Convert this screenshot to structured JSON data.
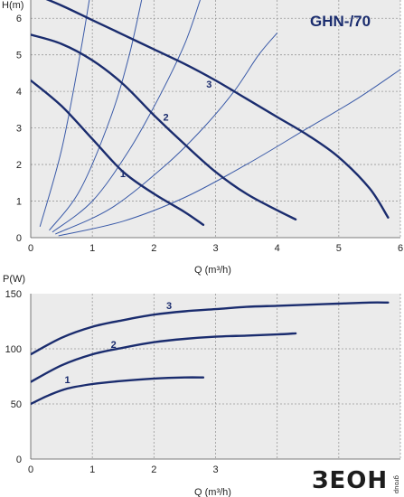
{
  "brand": {
    "logo_text": "ЗЕОН",
    "logo_sub": "group"
  },
  "chart_data": [
    {
      "type": "line",
      "title": "GHN-/70",
      "xlabel": "Q (m³/h)",
      "ylabel": "H(m)",
      "xlim": [
        0,
        6
      ],
      "ylim": [
        0,
        6.5
      ],
      "x_ticks": [
        "0",
        "1",
        "2",
        "3",
        "4",
        "5",
        "6"
      ],
      "y_ticks": [
        "0",
        "1",
        "2",
        "3",
        "4",
        "5",
        "6"
      ],
      "grid": true,
      "series": [
        {
          "name": "1",
          "x": [
            0,
            0.5,
            1.0,
            1.5,
            2.0,
            2.5,
            2.8
          ],
          "y": [
            4.3,
            3.6,
            2.7,
            1.8,
            1.2,
            0.7,
            0.35
          ]
        },
        {
          "name": "2",
          "x": [
            0,
            0.5,
            1.0,
            1.5,
            2.0,
            2.5,
            3.0,
            3.5,
            4.0,
            4.3
          ],
          "y": [
            5.55,
            5.3,
            4.85,
            4.2,
            3.35,
            2.55,
            1.8,
            1.2,
            0.75,
            0.5
          ]
        },
        {
          "name": "3",
          "x": [
            0,
            0.5,
            1.0,
            1.5,
            2.0,
            2.5,
            3.0,
            3.5,
            4.0,
            4.5,
            5.0,
            5.5,
            5.8
          ],
          "y": [
            6.7,
            6.35,
            5.95,
            5.55,
            5.15,
            4.75,
            4.3,
            3.8,
            3.3,
            2.8,
            2.2,
            1.35,
            0.55
          ]
        }
      ],
      "system_curves": [
        {
          "x": [
            0.15,
            0.5,
            0.8,
            0.95
          ],
          "y": [
            0.3,
            2.4,
            5.0,
            6.5
          ]
        },
        {
          "x": [
            0.3,
            0.8,
            1.3,
            1.6,
            1.8
          ],
          "y": [
            0.2,
            1.3,
            3.3,
            5.0,
            6.5
          ]
        },
        {
          "x": [
            0.35,
            1.0,
            1.6,
            2.1,
            2.5,
            2.75
          ],
          "y": [
            0.15,
            1.0,
            2.4,
            3.9,
            5.3,
            6.5
          ]
        },
        {
          "x": [
            0.4,
            1.3,
            2.2,
            2.8,
            3.3,
            3.7,
            4.0
          ],
          "y": [
            0.1,
            0.8,
            2.0,
            3.0,
            4.0,
            5.0,
            5.6
          ]
        },
        {
          "x": [
            0.45,
            1.5,
            2.5,
            3.5,
            4.5,
            5.3,
            6.0
          ],
          "y": [
            0.05,
            0.45,
            1.1,
            2.0,
            3.0,
            3.8,
            4.6
          ]
        }
      ]
    },
    {
      "type": "line",
      "title": "",
      "xlabel": "Q (m³/h)",
      "ylabel": "P(W)",
      "xlim": [
        0,
        6
      ],
      "ylim": [
        0,
        150
      ],
      "x_ticks": [
        "0",
        "1",
        "2",
        "3"
      ],
      "y_ticks": [
        "0",
        "50",
        "100",
        "150"
      ],
      "grid": true,
      "series": [
        {
          "name": "1",
          "x": [
            0,
            0.3,
            0.6,
            1.0,
            1.5,
            2.0,
            2.5,
            2.8
          ],
          "y": [
            50,
            58,
            64,
            68,
            71,
            73,
            74,
            74
          ]
        },
        {
          "name": "2",
          "x": [
            0,
            0.5,
            1.0,
            1.5,
            2.0,
            2.5,
            3.0,
            3.5,
            4.0,
            4.3
          ],
          "y": [
            70,
            85,
            95,
            101,
            106,
            109,
            111,
            112,
            113,
            114
          ]
        },
        {
          "name": "3",
          "x": [
            0,
            0.5,
            1.0,
            1.5,
            2.0,
            2.5,
            3.0,
            3.5,
            4.0,
            4.5,
            5.0,
            5.5,
            5.8
          ],
          "y": [
            95,
            110,
            120,
            126,
            131,
            134,
            136,
            138,
            139,
            140,
            141,
            142,
            142
          ]
        }
      ]
    }
  ]
}
